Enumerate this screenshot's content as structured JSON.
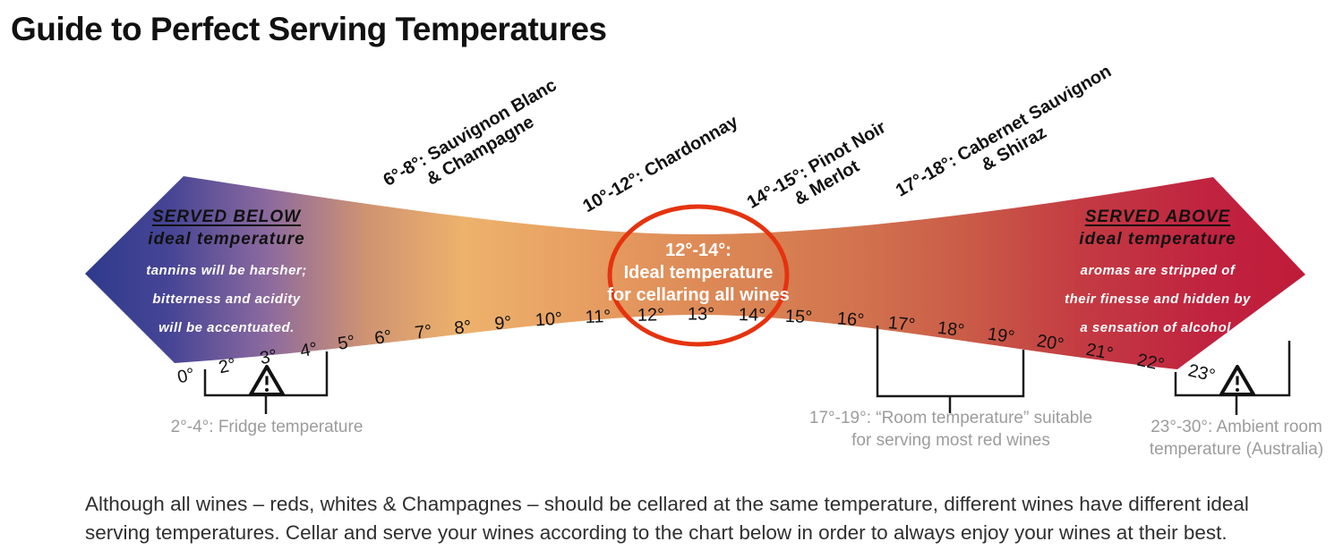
{
  "title": "Guide to Perfect Serving Temperatures",
  "colors": {
    "gradient_left_tip": "#2e3a8c",
    "gradient_purple": "#8c6a9e",
    "gradient_yellow_orange": "#edb26c",
    "gradient_center_orange": "#dd8956",
    "gradient_right_tip": "#bf1b39",
    "highlight_ring_red": "#e5330f",
    "annotation_gray": "#9c9c9c",
    "bracket_black": "#1a1a1a"
  },
  "served_below": {
    "heading": "SERVED BELOW",
    "subheading": "ideal temperature",
    "lines": [
      "tannins will be harsher;",
      "bitterness and acidity",
      "will be accentuated."
    ]
  },
  "served_above": {
    "heading": "SERVED ABOVE",
    "subheading": "ideal temperature",
    "lines": [
      "aromas are stripped of",
      "their finesse and hidden by",
      "a sensation of alcohol."
    ]
  },
  "center_callout": {
    "lines": [
      "12°-14°:",
      "Ideal temperature",
      "for cellaring all wines"
    ]
  },
  "wine_labels": [
    {
      "line1": "6°-8°: Sauvignon Blanc",
      "line2": "& Champagne"
    },
    {
      "line1": "10°-12°: Chardonnay",
      "line2": ""
    },
    {
      "line1": "14°-15°: Pinot Noir",
      "line2": "& Merlot"
    },
    {
      "line1": "17°-18°: Cabernet Sauvignon",
      "line2": "& Shiraz"
    }
  ],
  "scale_ticks": [
    "0°",
    "2°",
    "3°",
    "4°",
    "5°",
    "6°",
    "7°",
    "8°",
    "9°",
    "10°",
    "11°",
    "12°",
    "13°",
    "14°",
    "15°",
    "16°",
    "17°",
    "18°",
    "19°",
    "20°",
    "21°",
    "22°",
    "23°"
  ],
  "annotations": [
    {
      "lines": [
        "2°-4°: Fridge temperature"
      ]
    },
    {
      "lines": [
        "17°-19°: “Room temperature” suitable",
        "for serving most red wines"
      ]
    },
    {
      "lines": [
        "23°-30°: Ambient room",
        "temperature (Australia)"
      ]
    }
  ],
  "footer": "Although all wines – reds, whites & Champagnes – should be cellared at the same temperature, different wines have different ideal serving temperatures. Cellar and serve your wines according to the chart below in order to always enjoy your wines at their best."
}
